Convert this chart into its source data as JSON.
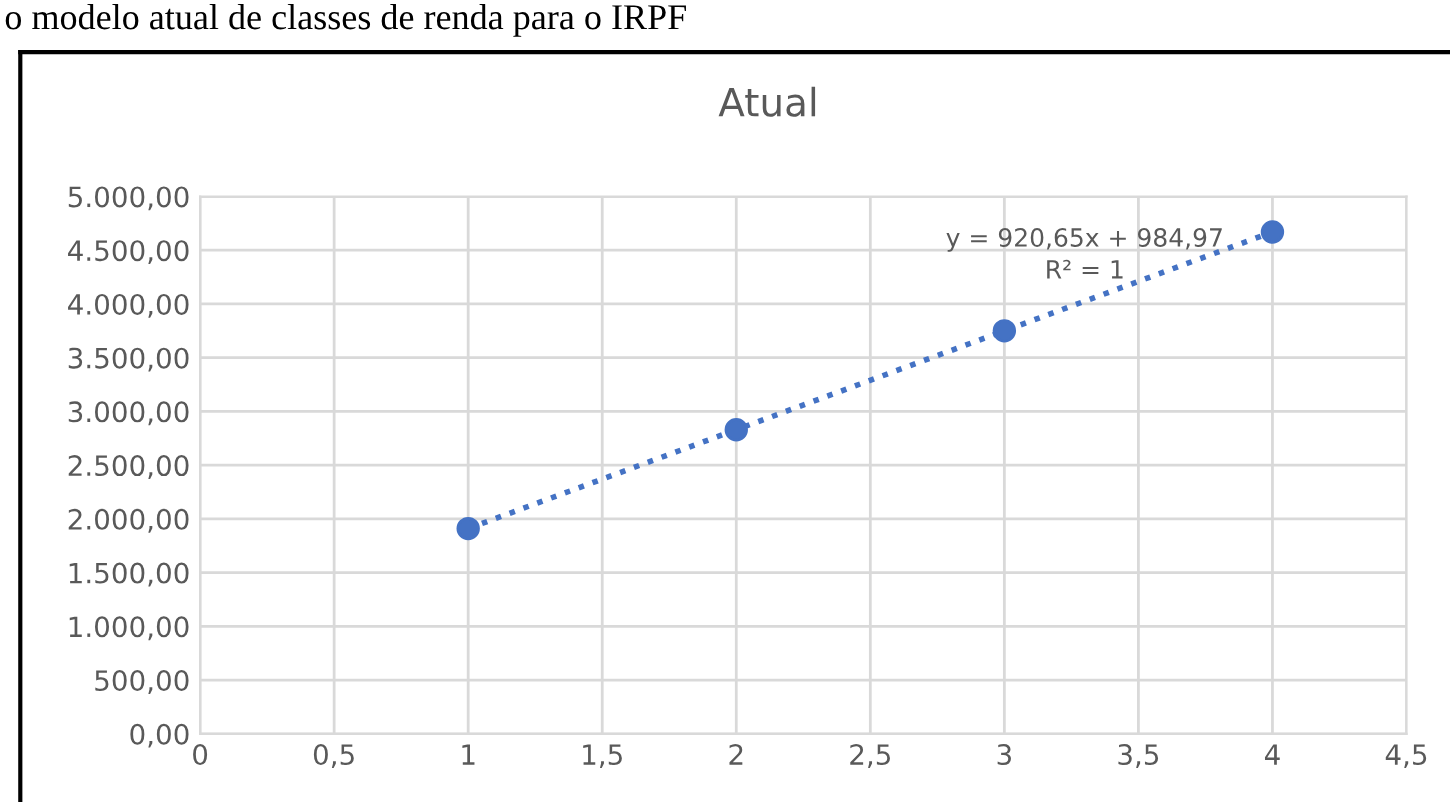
{
  "chart_data": {
    "type": "scatter",
    "title": "Atual",
    "annotations": [
      "o modelo atual de classes de renda para o IRPF",
      "y = 920,65x + 984,97\nR² = 1"
    ],
    "x": [
      1,
      2,
      3,
      4
    ],
    "series": [
      {
        "color": "#4472c4",
        "values": [
          1910,
          2830,
          3750,
          4670
        ],
        "marker": "circle"
      },
      {
        "type": "line",
        "color": "#4472c4",
        "x": [
          1,
          4
        ],
        "values": [
          1910,
          4670
        ],
        "line_style": "dotted"
      }
    ],
    "xlim": [
      0,
      4.5
    ],
    "xticks": [
      0,
      {
        "value": 0.5,
        "label": "0,5"
      },
      1,
      {
        "value": 1.5,
        "label": "1,5"
      },
      2,
      {
        "value": 2.5,
        "label": "2,5"
      },
      3,
      {
        "value": 3.5,
        "label": "3,5"
      },
      4,
      {
        "value": 4.5,
        "label": "4,5"
      }
    ],
    "ylim": [
      0,
      5000
    ],
    "yticks": [
      {
        "value": 0,
        "label": "0,00"
      },
      {
        "value": 500,
        "label": "500,00"
      },
      {
        "value": 1000,
        "label": "1.000,00"
      },
      {
        "value": 1500,
        "label": "1.500,00"
      },
      {
        "value": 2000,
        "label": "2.000,00"
      },
      {
        "value": 2500,
        "label": "2.500,00"
      },
      {
        "value": 3000,
        "label": "3.000,00"
      },
      {
        "value": 3500,
        "label": "3.500,00"
      },
      {
        "value": 4000,
        "label": "4.000,00"
      },
      {
        "value": 4500,
        "label": "4.500,00"
      },
      {
        "value": 5000,
        "label": "5.000,00"
      }
    ],
    "grid": true,
    "legend": false
  }
}
